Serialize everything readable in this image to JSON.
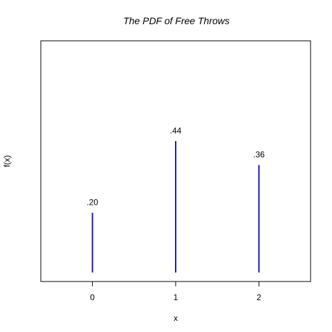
{
  "chart_data": {
    "type": "bar",
    "title": "The PDF of Free Throws",
    "xlabel": "x",
    "ylabel": "f(x)",
    "x": [
      0,
      1,
      2
    ],
    "values": [
      0.2,
      0.44,
      0.36
    ],
    "data_labels": [
      ".20",
      ".44",
      ".36"
    ],
    "tick_labels": [
      "0",
      "1",
      "2"
    ],
    "xlim": [
      -0.62,
      2.62
    ],
    "ylim": [
      0.0,
      0.44
    ],
    "bar_color": "#1a1ab8",
    "grid": false,
    "legend": "none"
  }
}
